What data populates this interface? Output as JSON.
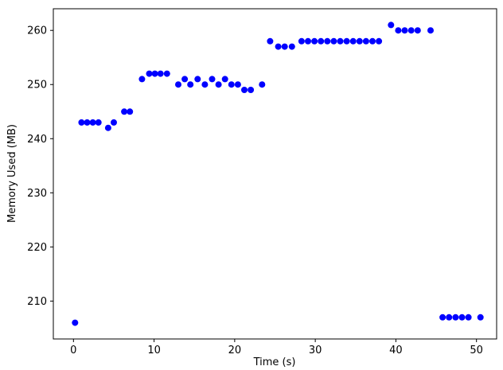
{
  "chart_data": {
    "type": "scatter",
    "title": "",
    "xlabel": "Time (s)",
    "ylabel": "Memory Used (MB)",
    "xlim": [
      -2.5,
      52.5
    ],
    "ylim": [
      203,
      264
    ],
    "xticks": [
      0,
      10,
      20,
      30,
      40,
      50
    ],
    "yticks": [
      210,
      220,
      230,
      240,
      250,
      260
    ],
    "grid": false,
    "legend": null,
    "marker": "circle",
    "marker_color": "#0000ff",
    "marker_radius": 4,
    "points": [
      [
        0.2,
        206
      ],
      [
        1.0,
        243
      ],
      [
        1.7,
        243
      ],
      [
        2.4,
        243
      ],
      [
        3.1,
        243
      ],
      [
        4.3,
        242
      ],
      [
        5.0,
        243
      ],
      [
        6.3,
        245
      ],
      [
        7.0,
        245
      ],
      [
        8.5,
        251
      ],
      [
        9.4,
        252
      ],
      [
        10.1,
        252
      ],
      [
        10.8,
        252
      ],
      [
        11.6,
        252
      ],
      [
        13.0,
        250
      ],
      [
        13.8,
        251
      ],
      [
        14.5,
        250
      ],
      [
        15.4,
        251
      ],
      [
        16.3,
        250
      ],
      [
        17.2,
        251
      ],
      [
        18.0,
        250
      ],
      [
        18.8,
        251
      ],
      [
        19.6,
        250
      ],
      [
        20.4,
        250
      ],
      [
        21.2,
        249
      ],
      [
        22.0,
        249
      ],
      [
        23.4,
        250
      ],
      [
        24.4,
        258
      ],
      [
        25.4,
        257
      ],
      [
        26.2,
        257
      ],
      [
        27.1,
        257
      ],
      [
        28.3,
        258
      ],
      [
        29.1,
        258
      ],
      [
        29.9,
        258
      ],
      [
        30.7,
        258
      ],
      [
        31.5,
        258
      ],
      [
        32.3,
        258
      ],
      [
        33.1,
        258
      ],
      [
        33.9,
        258
      ],
      [
        34.7,
        258
      ],
      [
        35.5,
        258
      ],
      [
        36.3,
        258
      ],
      [
        37.1,
        258
      ],
      [
        37.9,
        258
      ],
      [
        39.4,
        261
      ],
      [
        40.3,
        260
      ],
      [
        41.1,
        260
      ],
      [
        41.9,
        260
      ],
      [
        42.7,
        260
      ],
      [
        44.3,
        260
      ],
      [
        45.8,
        207
      ],
      [
        46.6,
        207
      ],
      [
        47.4,
        207
      ],
      [
        48.2,
        207
      ],
      [
        49.0,
        207
      ],
      [
        50.5,
        207
      ]
    ]
  }
}
